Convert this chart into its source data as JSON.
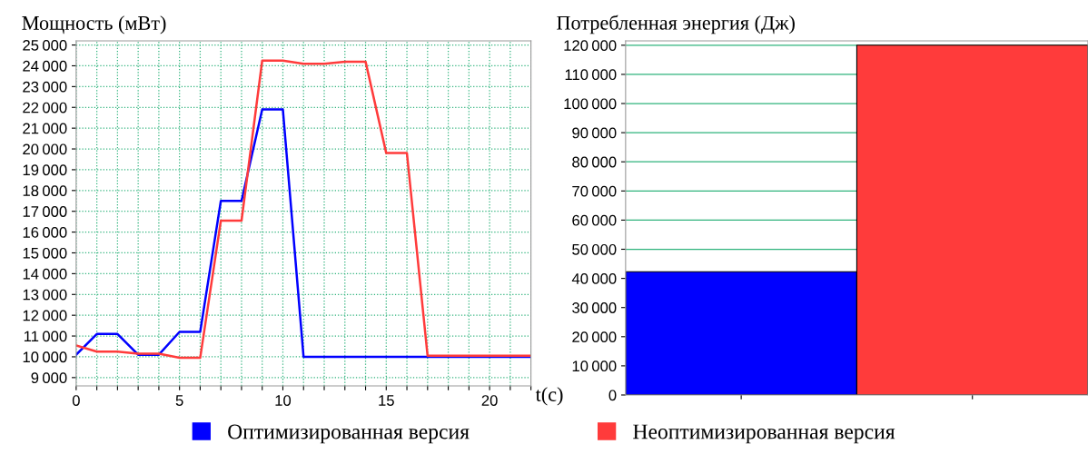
{
  "chart_data": [
    {
      "type": "line",
      "ylabel": "Мощность (мВт)",
      "xlabel": "t(c)",
      "x": [
        0,
        1,
        2,
        3,
        4,
        5,
        6,
        7,
        8,
        9,
        10,
        11,
        12,
        13,
        14,
        15,
        16,
        17,
        18,
        19,
        20,
        21,
        22
      ],
      "series": [
        {
          "name": "Оптимизированная версия",
          "color": "#0000ff",
          "values": [
            10100,
            11100,
            11100,
            10100,
            10100,
            11200,
            11200,
            17500,
            17500,
            21900,
            21900,
            10000,
            10000,
            10000,
            10000,
            10000,
            10000,
            10000,
            10000,
            10000,
            10000,
            10000,
            10000
          ]
        },
        {
          "name": "Неоптимизированная версия",
          "color": "#ff3b3b",
          "values": [
            10550,
            10250,
            10250,
            10150,
            10150,
            9950,
            9950,
            16550,
            16550,
            24250,
            24250,
            24100,
            24100,
            24200,
            24200,
            19800,
            19800,
            10050,
            10050,
            10050,
            10050,
            10050,
            10050
          ]
        }
      ],
      "xlim": [
        0,
        22
      ],
      "xticks": [
        0,
        {
          "value": 1,
          "label": null
        },
        {
          "value": 2,
          "label": null
        },
        {
          "value": 3,
          "label": null
        },
        {
          "value": 4,
          "label": null
        },
        5,
        {
          "value": 6,
          "label": null
        },
        {
          "value": 7,
          "label": null
        },
        {
          "value": 8,
          "label": null
        },
        {
          "value": 9,
          "label": null
        },
        10,
        {
          "value": 11,
          "label": null
        },
        {
          "value": 12,
          "label": null
        },
        {
          "value": 13,
          "label": null
        },
        {
          "value": 14,
          "label": null
        },
        15,
        {
          "value": 16,
          "label": null
        },
        {
          "value": 17,
          "label": null
        },
        {
          "value": 18,
          "label": null
        },
        {
          "value": 19,
          "label": null
        },
        20,
        {
          "value": 21,
          "label": null
        },
        {
          "value": 22,
          "label": null
        }
      ],
      "ylim": [
        8600,
        25200
      ],
      "yticks": [
        9000,
        10000,
        11000,
        12000,
        13000,
        14000,
        15000,
        16000,
        17000,
        18000,
        19000,
        20000,
        21000,
        22000,
        23000,
        24000,
        25000
      ],
      "grid": true,
      "legend": "bottom",
      "line_style": "solid"
    },
    {
      "type": "bar",
      "ylabel": "Потребленная энергия (Дж)",
      "categories": [
        null,
        null
      ],
      "values": [
        42300,
        120000
      ],
      "colors": [
        "#0000ff",
        "#ff3b3b"
      ],
      "ylim": [
        0,
        121500
      ],
      "yticks": [
        0,
        10000,
        20000,
        30000,
        40000,
        50000,
        60000,
        70000,
        80000,
        90000,
        100000,
        110000,
        120000
      ],
      "grid": "y"
    }
  ]
}
